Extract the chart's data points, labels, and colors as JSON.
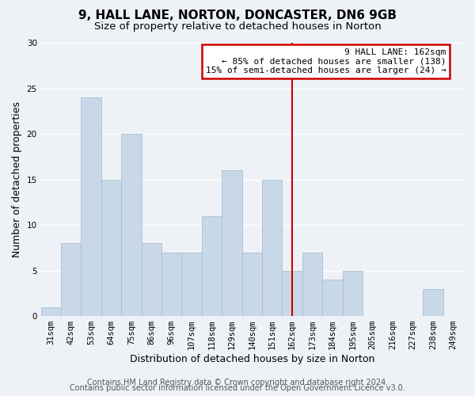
{
  "title": "9, HALL LANE, NORTON, DONCASTER, DN6 9GB",
  "subtitle": "Size of property relative to detached houses in Norton",
  "xlabel": "Distribution of detached houses by size in Norton",
  "ylabel": "Number of detached properties",
  "footer_line1": "Contains HM Land Registry data © Crown copyright and database right 2024.",
  "footer_line2": "Contains public sector information licensed under the Open Government Licence v3.0.",
  "categories": [
    "31sqm",
    "42sqm",
    "53sqm",
    "64sqm",
    "75sqm",
    "86sqm",
    "96sqm",
    "107sqm",
    "118sqm",
    "129sqm",
    "140sqm",
    "151sqm",
    "162sqm",
    "173sqm",
    "184sqm",
    "195sqm",
    "205sqm",
    "216sqm",
    "227sqm",
    "238sqm",
    "249sqm"
  ],
  "values": [
    1,
    8,
    24,
    15,
    20,
    8,
    7,
    7,
    11,
    16,
    7,
    15,
    5,
    7,
    4,
    5,
    0,
    0,
    0,
    3,
    0
  ],
  "bar_color": "#c8d8e8",
  "bar_edge_color": "#a8c0d0",
  "vline_x_index": 12,
  "vline_color": "#cc0000",
  "annotation_title": "9 HALL LANE: 162sqm",
  "annotation_line1": "← 85% of detached houses are smaller (138)",
  "annotation_line2": "15% of semi-detached houses are larger (24) →",
  "annotation_box_color": "#ffffff",
  "annotation_box_edge_color": "#cc0000",
  "ylim": [
    0,
    30
  ],
  "yticks": [
    0,
    5,
    10,
    15,
    20,
    25,
    30
  ],
  "background_color": "#eef2f7",
  "grid_color": "#ffffff",
  "title_fontsize": 11,
  "subtitle_fontsize": 9.5,
  "axis_label_fontsize": 9,
  "tick_fontsize": 7.5,
  "footer_fontsize": 7
}
